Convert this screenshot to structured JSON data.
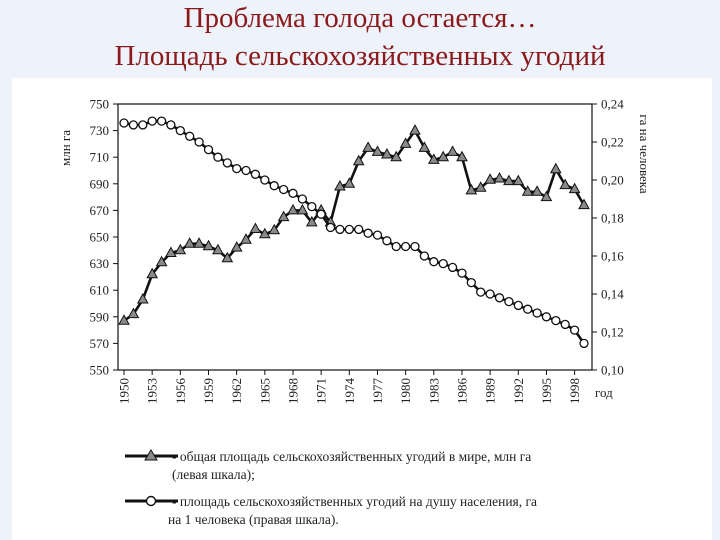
{
  "slide": {
    "title_line1": "Проблема голода остается…",
    "title_line2": "Площадь сельскохозяйственных угодий"
  },
  "chart_data": {
    "type": "line",
    "title": "",
    "xlabel": "год",
    "ylabel_left": "млн га",
    "ylabel_right": "га на человека",
    "x": [
      1950,
      1951,
      1952,
      1953,
      1954,
      1955,
      1956,
      1957,
      1958,
      1959,
      1960,
      1961,
      1962,
      1963,
      1964,
      1965,
      1966,
      1967,
      1968,
      1969,
      1970,
      1971,
      1972,
      1973,
      1974,
      1975,
      1976,
      1977,
      1978,
      1979,
      1980,
      1981,
      1982,
      1983,
      1984,
      1985,
      1986,
      1987,
      1988,
      1989,
      1990,
      1991,
      1992,
      1993,
      1994,
      1995,
      1996,
      1997,
      1998,
      1999
    ],
    "xticks": [
      "1950",
      "1953",
      "1956",
      "1959",
      "1962",
      "1965",
      "1968",
      "1971",
      "1974",
      "1977",
      "1980",
      "1983",
      "1986",
      "1989",
      "1992",
      "1995",
      "1998"
    ],
    "xlim": [
      1950,
      1999
    ],
    "yticks_left": [
      "750",
      "730",
      "710",
      "690",
      "670",
      "650",
      "630",
      "610",
      "590",
      "570",
      "550"
    ],
    "ylim_left": [
      550,
      750
    ],
    "yticks_right": [
      "0,24",
      "0,22",
      "0,20",
      "0,18",
      "0,16",
      "0,14",
      "0,12",
      "0,10"
    ],
    "ylim_right": [
      0.1,
      0.24
    ],
    "grid": false,
    "series": [
      {
        "name": "общая площадь сельскохозяйственных угодий в мире, млн га (левая шкала)",
        "axis": "left",
        "marker": "triangle",
        "values": [
          587,
          592,
          603,
          622,
          631,
          638,
          640,
          645,
          645,
          643,
          640,
          634,
          642,
          648,
          656,
          652,
          655,
          665,
          670,
          670,
          661,
          670,
          661,
          688,
          690,
          707,
          717,
          714,
          712,
          710,
          720,
          730,
          717,
          708,
          710,
          714,
          710,
          685,
          687,
          693,
          694,
          692,
          692,
          684,
          684,
          680,
          701,
          689,
          686,
          674
        ]
      },
      {
        "name": "площадь сельскохозяйственных угодий на душу населения, га на 1 человека (правая шкала)",
        "axis": "right",
        "marker": "circle",
        "values": [
          0.23,
          0.229,
          0.229,
          0.231,
          0.231,
          0.229,
          0.226,
          0.223,
          0.22,
          0.216,
          0.212,
          0.209,
          0.206,
          0.205,
          0.203,
          0.2,
          0.197,
          0.195,
          0.193,
          0.19,
          0.186,
          0.182,
          0.175,
          0.174,
          0.174,
          0.174,
          0.172,
          0.171,
          0.168,
          0.165,
          0.165,
          0.165,
          0.16,
          0.157,
          0.156,
          0.154,
          0.151,
          0.146,
          0.141,
          0.14,
          0.138,
          0.136,
          0.134,
          0.132,
          0.13,
          0.128,
          0.126,
          0.124,
          0.121,
          0.114
        ]
      }
    ],
    "legend": {
      "placement": "bottom",
      "entries": [
        {
          "marker": "triangle",
          "line1": "- общая площадь сельскохозяйственных угодий в мире, млн га",
          "line2": "(левая шкала);"
        },
        {
          "marker": "circle",
          "line1": "- площадь сельскохозяйственных угодий на душу населения, га",
          "line2": "на 1 человека (правая шкала)."
        }
      ]
    },
    "colors": {
      "line": "#111111",
      "triangle_fill": "#8a8a8a",
      "circle_fill": "#ffffff",
      "title": "#8b1a1a",
      "background": "#eef2fb"
    }
  }
}
